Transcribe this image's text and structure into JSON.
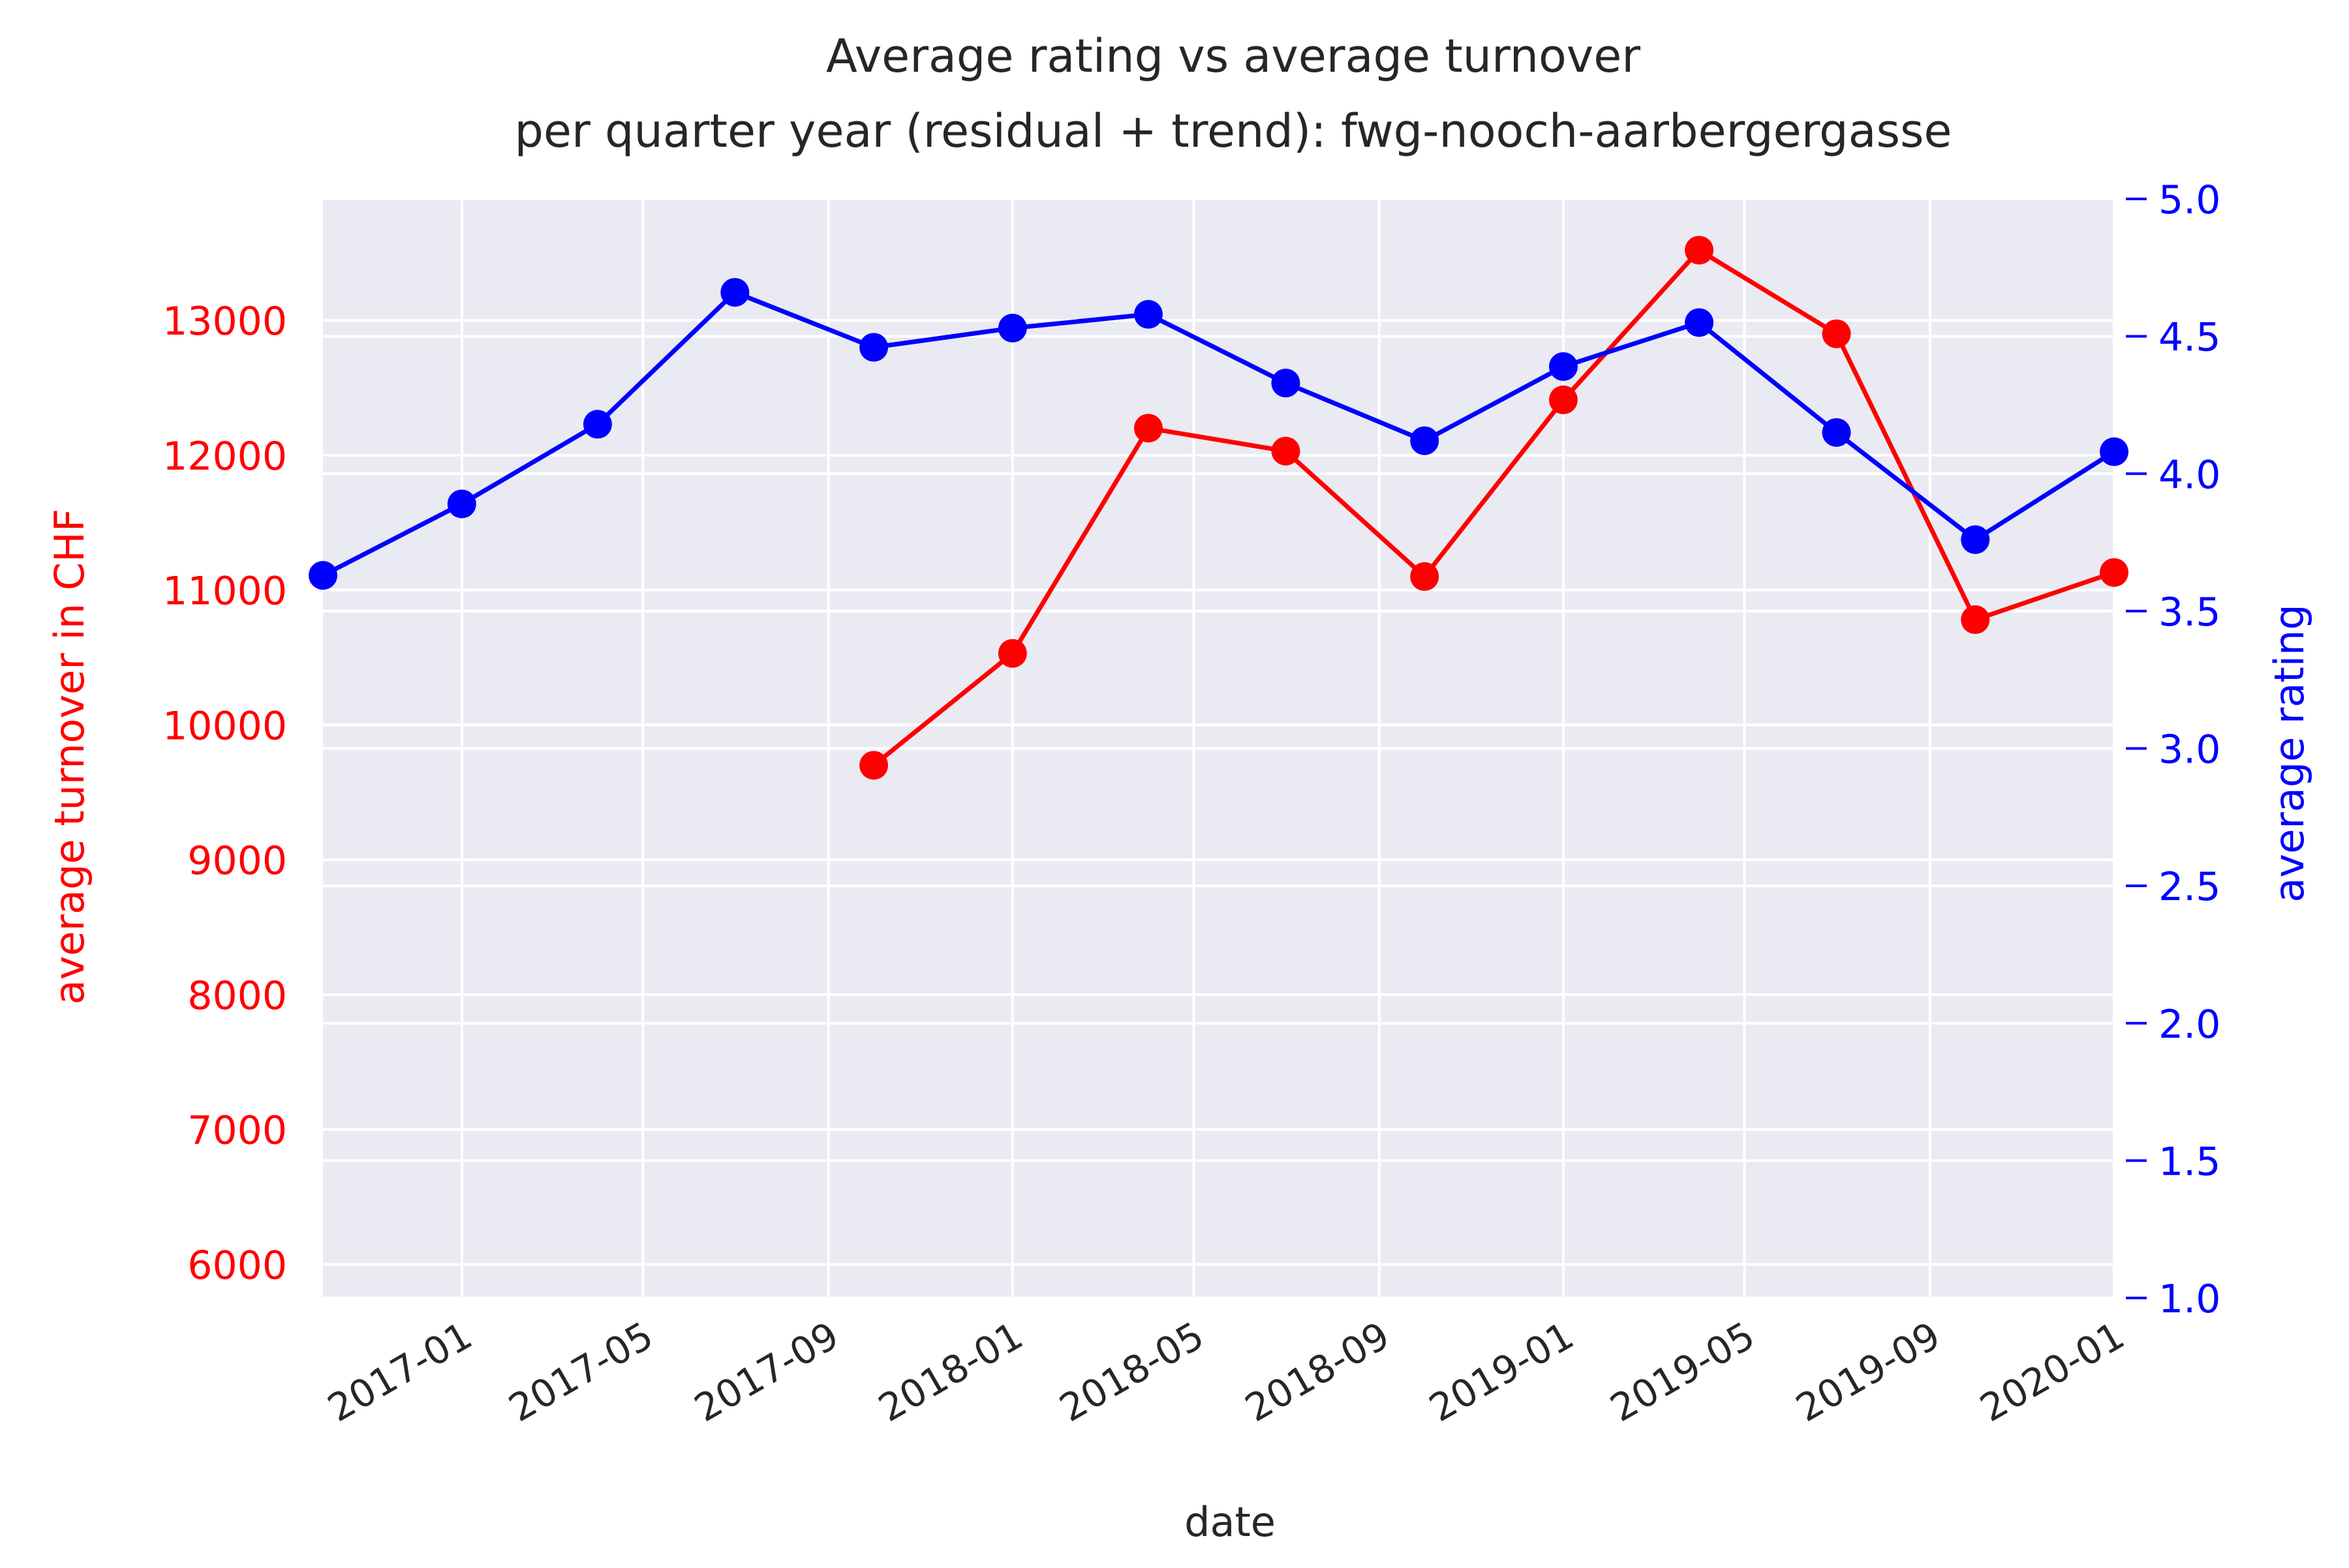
{
  "chart_data": {
    "type": "line",
    "title": "Average rating vs average turnover",
    "subtitle": "per quarter year (residual + trend): fwg-nooch-aarbergergasse",
    "xlabel": "date",
    "ylabel_left": "average turnover in CHF",
    "ylabel_right": "average rating",
    "grid": true,
    "x_ticks": [
      "2017-01",
      "2017-05",
      "2017-09",
      "2018-01",
      "2018-05",
      "2018-09",
      "2019-01",
      "2019-05",
      "2019-09",
      "2020-01"
    ],
    "y_left_ticks": [
      "6000",
      "7000",
      "8000",
      "9000",
      "10000",
      "11000",
      "12000",
      "13000"
    ],
    "y_right_ticks": [
      "1.0",
      "1.5",
      "2.0",
      "2.5",
      "3.0",
      "3.5",
      "4.0",
      "4.5",
      "5.0"
    ],
    "xlim": [
      "2016-10-01",
      "2020-01-01"
    ],
    "ylim_left": [
      5750,
      13900
    ],
    "ylim_right": [
      1.0,
      5.0
    ],
    "colors": {
      "turnover": "#ff0000",
      "rating": "#0000ff",
      "background": "#eaeaf2",
      "grid": "#ffffff",
      "text": "#262626"
    },
    "series": [
      {
        "axis": "left",
        "color": "#ff0000",
        "points": [
          {
            "x": "2017-10-01",
            "y": 9700
          },
          {
            "x": "2018-01-01",
            "y": 10530
          },
          {
            "x": "2018-04-01",
            "y": 12200
          },
          {
            "x": "2018-07-01",
            "y": 12030
          },
          {
            "x": "2018-10-01",
            "y": 11100
          },
          {
            "x": "2019-01-01",
            "y": 12410
          },
          {
            "x": "2019-04-01",
            "y": 13520
          },
          {
            "x": "2019-07-01",
            "y": 12900
          },
          {
            "x": "2019-10-01",
            "y": 10780
          },
          {
            "x": "2020-01-01",
            "y": 11130
          }
        ]
      },
      {
        "axis": "right",
        "color": "#0000ff",
        "points": [
          {
            "x": "2016-10-01",
            "y": 3.63
          },
          {
            "x": "2017-01-01",
            "y": 3.89
          },
          {
            "x": "2017-04-01",
            "y": 4.18
          },
          {
            "x": "2017-07-01",
            "y": 4.66
          },
          {
            "x": "2017-10-01",
            "y": 4.46
          },
          {
            "x": "2018-01-01",
            "y": 4.53
          },
          {
            "x": "2018-04-01",
            "y": 4.58
          },
          {
            "x": "2018-07-01",
            "y": 4.33
          },
          {
            "x": "2018-10-01",
            "y": 4.12
          },
          {
            "x": "2019-01-01",
            "y": 4.39
          },
          {
            "x": "2019-04-01",
            "y": 4.55
          },
          {
            "x": "2019-07-01",
            "y": 4.15
          },
          {
            "x": "2019-10-01",
            "y": 3.76
          },
          {
            "x": "2020-01-01",
            "y": 4.08
          }
        ]
      }
    ]
  }
}
